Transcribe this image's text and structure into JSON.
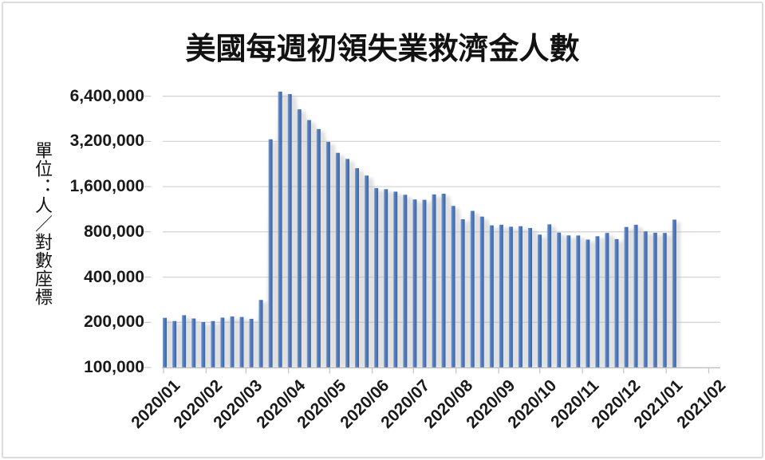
{
  "colors": {
    "bar_core": "#4A77BC",
    "bar_light": "#8FA8D2",
    "bar_dark": "#3B5E9E",
    "gridline": "#D5D5D5",
    "axis_line": "#BFBFBF",
    "shadow": "#B9B9B9",
    "tick_text": "#1A1A1A",
    "frame_border": "#DCDCDC",
    "background": "#FFFFFF"
  },
  "chart_data": {
    "type": "bar",
    "title": "美國每週初領失業救濟金人數",
    "ylabel": "單位：人／對數座標",
    "xlabel": "",
    "y_scale": "log2",
    "ylim": [
      100000,
      8000000
    ],
    "grid": true,
    "legend": false,
    "y_tick_values": [
      6400000,
      3200000,
      1600000,
      800000,
      400000,
      200000,
      100000
    ],
    "y_tick_labels": [
      "6,400,000",
      "3,200,000",
      "1,600,000",
      "800,000",
      "400,000",
      "200,000",
      "100,000"
    ],
    "x_tick_labels": [
      "2020/01",
      "2020/02",
      "2020/03",
      "2020/04",
      "2020/05",
      "2020/06",
      "2020/07",
      "2020/08",
      "2020/09",
      "2020/10",
      "2020/11",
      "2020/12",
      "2021/01",
      "2021/02"
    ],
    "week_ending": [
      "2020/01/04",
      "2020/01/11",
      "2020/01/18",
      "2020/01/25",
      "2020/02/01",
      "2020/02/08",
      "2020/02/15",
      "2020/02/22",
      "2020/02/29",
      "2020/03/07",
      "2020/03/14",
      "2020/03/21",
      "2020/03/28",
      "2020/04/04",
      "2020/04/11",
      "2020/04/18",
      "2020/04/25",
      "2020/05/02",
      "2020/05/09",
      "2020/05/16",
      "2020/05/23",
      "2020/05/30",
      "2020/06/06",
      "2020/06/13",
      "2020/06/20",
      "2020/06/27",
      "2020/07/04",
      "2020/07/11",
      "2020/07/18",
      "2020/07/25",
      "2020/08/01",
      "2020/08/08",
      "2020/08/15",
      "2020/08/22",
      "2020/08/29",
      "2020/09/05",
      "2020/09/12",
      "2020/09/19",
      "2020/09/26",
      "2020/10/03",
      "2020/10/10",
      "2020/10/17",
      "2020/10/24",
      "2020/10/31",
      "2020/11/07",
      "2020/11/14",
      "2020/11/21",
      "2020/11/28",
      "2020/12/05",
      "2020/12/12",
      "2020/12/19",
      "2020/12/26",
      "2021/01/02",
      "2021/01/09"
    ],
    "values": [
      214000,
      204000,
      223000,
      212000,
      201000,
      204000,
      215000,
      219000,
      217000,
      211000,
      282000,
      3307000,
      6867000,
      6615000,
      5237000,
      4442000,
      3867000,
      3176000,
      2687000,
      2446000,
      2123000,
      1897000,
      1566000,
      1540000,
      1482000,
      1413000,
      1314000,
      1308000,
      1422000,
      1435000,
      1191000,
      971000,
      1104000,
      1011000,
      884000,
      893000,
      866000,
      873000,
      849000,
      767000,
      898000,
      791000,
      758000,
      757000,
      711000,
      748000,
      787000,
      716000,
      862000,
      892000,
      806000,
      790000,
      787000,
      965000
    ]
  }
}
